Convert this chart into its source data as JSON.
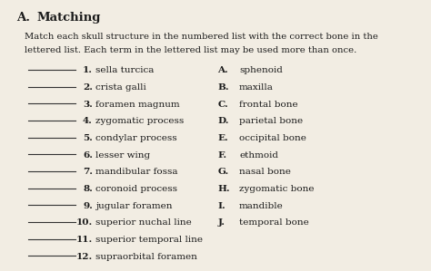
{
  "bg_color": "#f2ede3",
  "text_color": "#1a1a1a",
  "title_A": "A.",
  "title_word": "Matching",
  "subtitle1": "Match each skull structure in the numbered list with the correct bone in the",
  "subtitle2": "lettered list. Each term in the lettered list may be used more than once.",
  "numbered_numbers": [
    "1.",
    "2.",
    "3.",
    "4.",
    "5.",
    "6.",
    "7.",
    "8.",
    "9.",
    "10.",
    "11.",
    "12."
  ],
  "numbered_texts": [
    "sella turcica",
    "crista galli",
    "foramen magnum",
    "zygomatic process",
    "condylar process",
    "lesser wing",
    "mandibular fossa",
    "coronoid process",
    "jugular foramen",
    "superior nuchal line",
    "superior temporal line",
    "supraorbital foramen"
  ],
  "lettered_letters": [
    "A.",
    "B.",
    "C.",
    "D.",
    "E.",
    "F.",
    "G.",
    "H.",
    "I.",
    "J."
  ],
  "lettered_texts": [
    "sphenoid",
    "maxilla",
    "frontal bone",
    "parietal bone",
    "occipital bone",
    "ethmoid",
    "nasal bone",
    "zygomatic bone",
    "mandible",
    "temporal bone"
  ],
  "title_fontsize": 9.5,
  "subtitle_fontsize": 7.2,
  "body_fontsize": 7.5,
  "line_color": "#333333"
}
